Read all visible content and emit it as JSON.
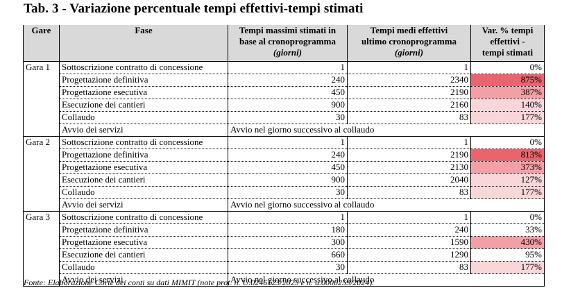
{
  "title": "Tab. 3 - Variazione percentuale tempi effettivi-tempi stimati",
  "headers": {
    "gare": "Gare",
    "fase": "Fase",
    "stimati_line1": "Tempi massimi stimati in",
    "stimati_line2": "base al cronoprogramma",
    "stimati_unit": "(giorni)",
    "effettivi_line1": "Tempi medi effettivi",
    "effettivi_line2": "ultimo cronoprogramma",
    "effettivi_unit": "(giorni)",
    "var_line1": "Var. % tempi",
    "var_line2": "effettivi -",
    "var_line3": "tempi stimati"
  },
  "colors": {
    "header_bg": "#d9d9d9",
    "var_high": "#e8646e",
    "var_mid": "#f2a0a6",
    "var_low": "#f9d6d9",
    "var_none": "#ffffff"
  },
  "groups": [
    {
      "gara": "Gara 1",
      "rows": [
        {
          "fase": "Sottoscrizione contratto di concessione",
          "stimati": "1",
          "effettivi": "1",
          "var": "0%",
          "level": "none"
        },
        {
          "fase": "Progettazione definitiva",
          "stimati": "240",
          "effettivi": "2340",
          "var": "875%",
          "level": "high"
        },
        {
          "fase": "Progettazione esecutiva",
          "stimati": "450",
          "effettivi": "2190",
          "var": "387%",
          "level": "mid"
        },
        {
          "fase": "Esecuzione dei cantieri",
          "stimati": "900",
          "effettivi": "2160",
          "var": "140%",
          "level": "low"
        },
        {
          "fase": "Collaudo",
          "stimati": "30",
          "effettivi": "83",
          "var": "177%",
          "level": "low"
        },
        {
          "fase": "Avvio dei servizi",
          "avvio": "Avvio nel giorno successivo al collaudo"
        }
      ]
    },
    {
      "gara": "Gara 2",
      "rows": [
        {
          "fase": "Sottoscrizione contratto di concessione",
          "stimati": "1",
          "effettivi": "1",
          "var": "0%",
          "level": "none"
        },
        {
          "fase": "Progettazione definitiva",
          "stimati": "240",
          "effettivi": "2190",
          "var": "813%",
          "level": "high"
        },
        {
          "fase": "Progettazione esecutiva",
          "stimati": "450",
          "effettivi": "2130",
          "var": "373%",
          "level": "mid"
        },
        {
          "fase": "Esecuzione dei cantieri",
          "stimati": "900",
          "effettivi": "2040",
          "var": "127%",
          "level": "low"
        },
        {
          "fase": "Collaudo",
          "stimati": "30",
          "effettivi": "83",
          "var": "177%",
          "level": "low"
        },
        {
          "fase": "Avvio dei servizi",
          "avvio": "Avvio nel giorno successivo al collaudo"
        }
      ]
    },
    {
      "gara": "Gara 3",
      "rows": [
        {
          "fase": "Sottoscrizione contratto di concessione",
          "stimati": "1",
          "effettivi": "1",
          "var": "0%",
          "level": "none"
        },
        {
          "fase": "Progettazione definitiva",
          "stimati": "180",
          "effettivi": "240",
          "var": "33%",
          "level": "none"
        },
        {
          "fase": "Progettazione esecutiva",
          "stimati": "300",
          "effettivi": "1590",
          "var": "430%",
          "level": "mid"
        },
        {
          "fase": "Esecuzione dei cantieri",
          "stimati": "660",
          "effettivi": "1290",
          "var": "95%",
          "level": "none"
        },
        {
          "fase": "Collaudo",
          "stimati": "30",
          "effettivi": "83",
          "var": "177%",
          "level": "low"
        },
        {
          "fase": "Avvio dei servizi",
          "avvio": "Avvio nel giorno successivo al collaudo"
        }
      ]
    }
  ],
  "fonte": "Fonte: Elaborazione Corte dei conti su dati MIMIT (note prot. n. U.0246123/2023 e  n.  u.0000259/2024)."
}
